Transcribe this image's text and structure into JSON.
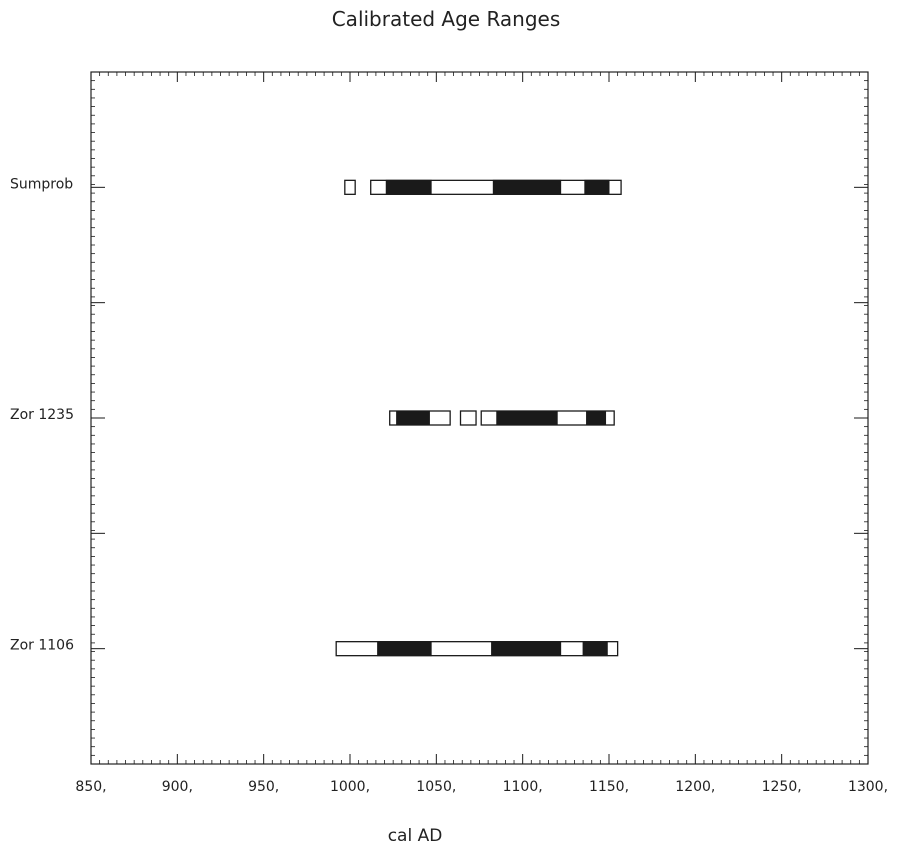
{
  "chart_data": {
    "type": "range-bar",
    "title": "Calibrated Age Ranges",
    "xlabel": "cal AD",
    "ylabel": "",
    "xlim": [
      850,
      1300
    ],
    "x_ticks": [
      850,
      900,
      950,
      1000,
      1050,
      1100,
      1150,
      1200,
      1250,
      1300
    ],
    "x_tick_suffix": ",",
    "grid": false,
    "legend": "none",
    "colors": {
      "sigma2": "#ffffff",
      "sigma1": "#1a1a1a",
      "stroke": "#1a1a1a"
    },
    "series": [
      {
        "name": "Sumprob",
        "sigma2": [
          [
            997,
            1003
          ],
          [
            1012,
            1157
          ]
        ],
        "sigma1": [
          [
            1021,
            1047
          ],
          [
            1083,
            1122
          ],
          [
            1136,
            1150
          ]
        ]
      },
      {
        "name": "Zor 1235",
        "sigma2": [
          [
            1023,
            1058
          ],
          [
            1064,
            1073
          ],
          [
            1076,
            1153
          ]
        ],
        "sigma1": [
          [
            1027,
            1046
          ],
          [
            1085,
            1120
          ],
          [
            1137,
            1148
          ]
        ]
      },
      {
        "name": "Zor 1106",
        "sigma2": [
          [
            992,
            1155
          ]
        ],
        "sigma1": [
          [
            1016,
            1047
          ],
          [
            1082,
            1122
          ],
          [
            1135,
            1149
          ]
        ]
      }
    ]
  }
}
